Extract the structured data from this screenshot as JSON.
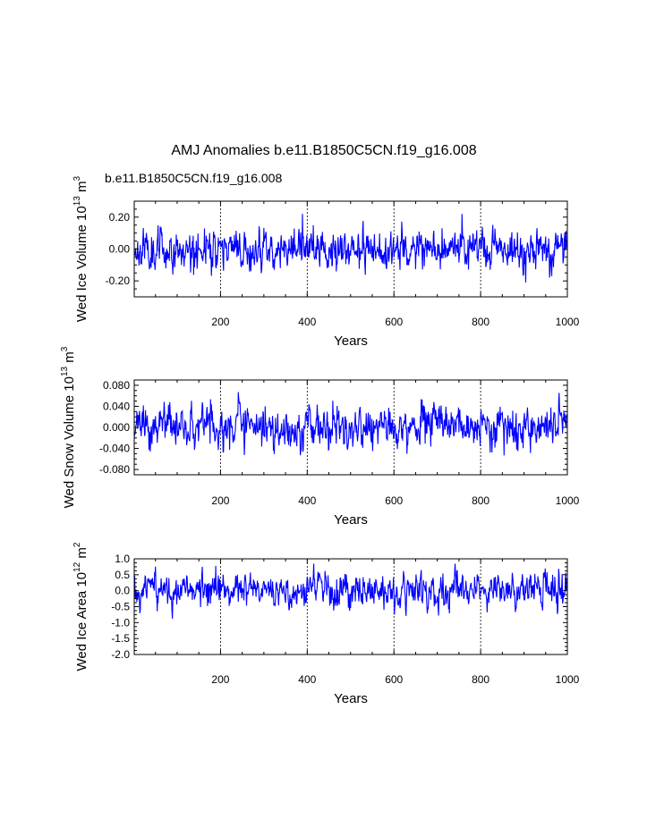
{
  "figure": {
    "title": "AMJ Anomalies b.e11.B1850C5CN.f19_g16.008",
    "subtitle": "b.e11.B1850C5CN.f19_g16.008",
    "subtitle_color": "#0000ff",
    "line_color": "#0000ff"
  },
  "chart_data": [
    {
      "type": "line",
      "ylabel": "Wed Ice Volume 10",
      "ylabel_exp": "13",
      "ylabel_unit": " m",
      "ylabel_unit_exp": "3",
      "xlabel": "Years",
      "xlim": [
        1,
        1000
      ],
      "ylim": [
        -0.3,
        0.3
      ],
      "xticks": [
        200,
        400,
        600,
        800,
        1000
      ],
      "xtick_labels": [
        "200",
        "400",
        "600",
        "800",
        "1000"
      ],
      "yticks": [
        -0.2,
        0.0,
        0.2
      ],
      "ytick_labels": [
        "-0.20",
        "0.00",
        "0.20"
      ],
      "amplitude": 0.055,
      "min": -0.21,
      "max": 0.22,
      "grid": "vertical dashed at major x ticks",
      "series": [
        {
          "seed": 11
        }
      ]
    },
    {
      "type": "line",
      "ylabel": "Wed Snow Volume 10",
      "ylabel_exp": "13",
      "ylabel_unit": " m",
      "ylabel_unit_exp": "3",
      "xlabel": "Years",
      "xlim": [
        1,
        1000
      ],
      "ylim": [
        -0.09,
        0.09
      ],
      "xticks": [
        200,
        400,
        600,
        800,
        1000
      ],
      "xtick_labels": [
        "200",
        "400",
        "600",
        "800",
        "1000"
      ],
      "yticks": [
        -0.08,
        -0.04,
        0.0,
        0.04,
        0.08
      ],
      "ytick_labels": [
        "-0.080",
        "-0.040",
        "0.000",
        "0.040",
        "0.080"
      ],
      "amplitude": 0.017,
      "min": -0.06,
      "max": 0.067,
      "grid": "vertical dashed at major x ticks",
      "series": [
        {
          "seed": 23
        }
      ]
    },
    {
      "type": "line",
      "ylabel": "Wed Ice Area 10",
      "ylabel_exp": "12",
      "ylabel_unit": " m",
      "ylabel_unit_exp": "2",
      "xlabel": "Years",
      "xlim": [
        1,
        1000
      ],
      "ylim": [
        -2.0,
        1.0
      ],
      "xticks": [
        200,
        400,
        600,
        800,
        1000
      ],
      "xtick_labels": [
        "200",
        "400",
        "600",
        "800",
        "1000"
      ],
      "yticks": [
        -2.0,
        -1.5,
        -1.0,
        -0.5,
        0.0,
        0.5,
        1.0
      ],
      "ytick_labels": [
        "-2.0",
        "-1.5",
        "-1.0",
        "-0.5",
        "0.0",
        "0.5",
        "1.0"
      ],
      "amplitude": 0.24,
      "min": -1.05,
      "max": 0.85,
      "grid": "vertical dashed at major x ticks",
      "series": [
        {
          "seed": 37
        }
      ]
    }
  ]
}
